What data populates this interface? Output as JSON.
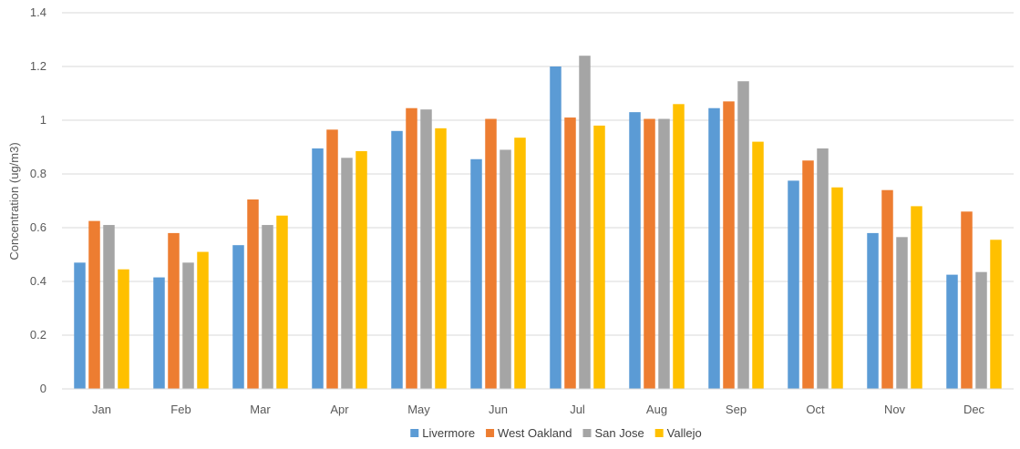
{
  "chart_data": {
    "type": "bar",
    "title": "",
    "xlabel": "",
    "ylabel": "Concentration (ug/m3)",
    "ylim": [
      0,
      1.4
    ],
    "yticks": [
      "0",
      "0.2",
      "0.4",
      "0.6",
      "0.8",
      "1",
      "1.2",
      "1.4"
    ],
    "grid": true,
    "legend_position": "bottom",
    "categories": [
      "Jan",
      "Feb",
      "Mar",
      "Apr",
      "May",
      "Jun",
      "Jul",
      "Aug",
      "Sep",
      "Oct",
      "Nov",
      "Dec"
    ],
    "series": [
      {
        "name": "Livermore",
        "color": "#5B9BD5",
        "values": [
          0.47,
          0.415,
          0.535,
          0.895,
          0.96,
          0.855,
          1.2,
          1.03,
          1.045,
          0.775,
          0.58,
          0.425
        ]
      },
      {
        "name": "West Oakland",
        "color": "#ED7D31",
        "values": [
          0.625,
          0.58,
          0.705,
          0.965,
          1.045,
          1.005,
          1.01,
          1.005,
          1.07,
          0.85,
          0.74,
          0.66
        ]
      },
      {
        "name": "San Jose",
        "color": "#A5A5A5",
        "values": [
          0.61,
          0.47,
          0.61,
          0.86,
          1.04,
          0.89,
          1.24,
          1.005,
          1.145,
          0.895,
          0.565,
          0.435
        ]
      },
      {
        "name": "Vallejo",
        "color": "#FFC000",
        "values": [
          0.445,
          0.51,
          0.645,
          0.885,
          0.97,
          0.935,
          0.98,
          1.06,
          0.92,
          0.75,
          0.68,
          0.555
        ]
      }
    ]
  }
}
